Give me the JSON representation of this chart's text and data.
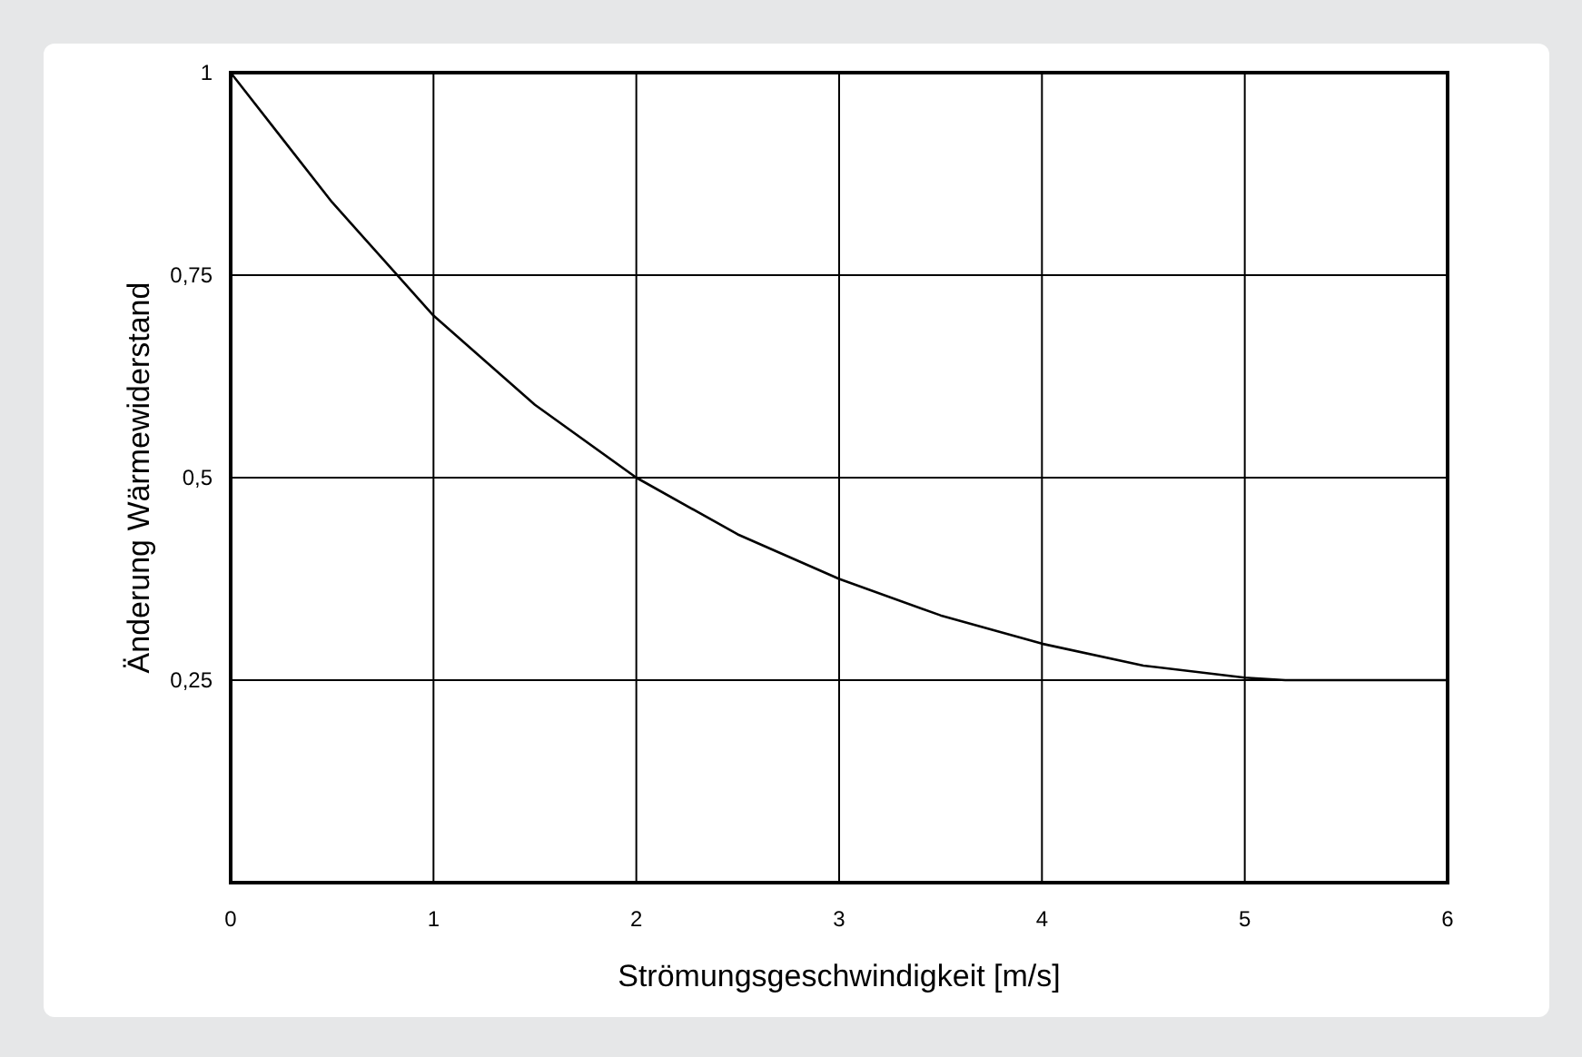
{
  "chart_data": {
    "type": "line",
    "xlabel": "Strömungsgeschwindigkeit [m/s]",
    "ylabel": "Änderung Wärmewiderstand",
    "x": [
      0,
      0.25,
      0.5,
      0.75,
      1,
      1.5,
      2,
      2.5,
      3,
      3.5,
      4,
      4.5,
      5,
      5.2,
      6
    ],
    "series": [
      {
        "color": "#000000",
        "values": [
          1,
          0.92,
          0.84,
          0.77,
          0.7,
          0.59,
          0.5,
          0.43,
          0.375,
          0.33,
          0.295,
          0.268,
          0.253,
          0.25,
          0.25
        ]
      }
    ],
    "xlim": [
      0,
      6
    ],
    "xticks": [
      0,
      1,
      2,
      3,
      4,
      5,
      6
    ],
    "ylim": [
      0,
      1
    ],
    "yticks": [
      {
        "value": 0,
        "label": null
      },
      {
        "value": 0.25,
        "label": "0,25"
      },
      {
        "value": 0.5,
        "label": "0,5"
      },
      {
        "value": 0.75,
        "label": "0,75"
      },
      {
        "value": 1,
        "label": "1"
      }
    ],
    "grid": true,
    "marker": "none",
    "line_style": "solid"
  }
}
